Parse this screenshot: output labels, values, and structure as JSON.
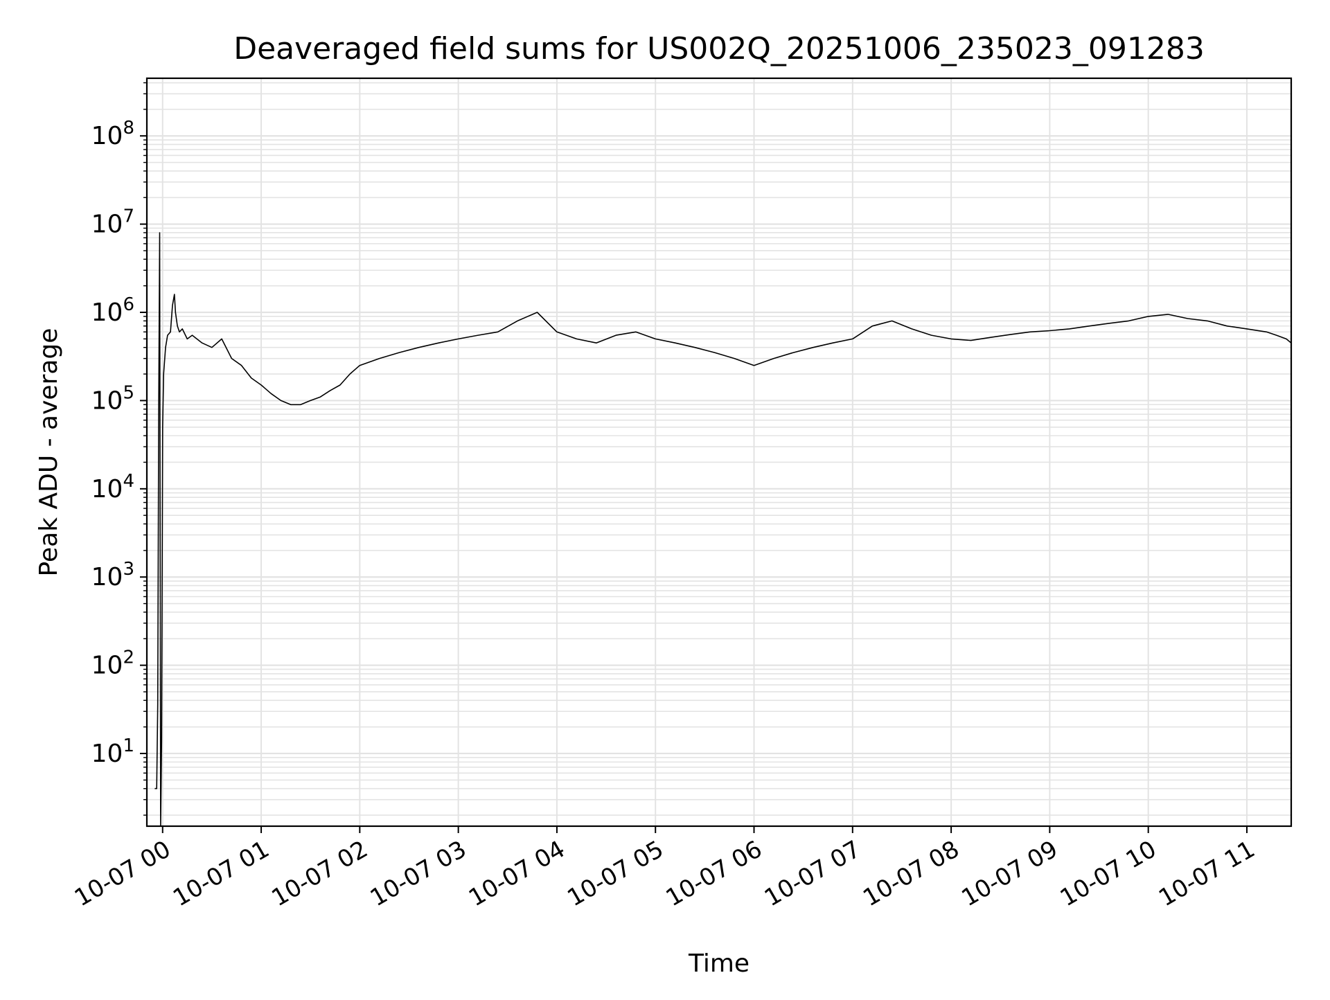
{
  "chart_data": {
    "type": "line",
    "title": "Deaveraged field sums for US002Q_20251006_235023_091283",
    "xlabel": "Time",
    "ylabel": "Peak ADU - average",
    "x_tick_labels": [
      "10-07 00",
      "10-07 01",
      "10-07 02",
      "10-07 03",
      "10-07 04",
      "10-07 05",
      "10-07 06",
      "10-07 07",
      "10-07 08",
      "10-07 09",
      "10-07 10",
      "10-07 11"
    ],
    "x_tick_hours": [
      0,
      1,
      2,
      3,
      4,
      5,
      6,
      7,
      8,
      9,
      10,
      11
    ],
    "xlim_hours": [
      -0.16,
      11.45
    ],
    "y_scale": "log",
    "ylim": [
      1.5,
      450000000.0
    ],
    "y_tick_exponents": [
      1,
      2,
      3,
      4,
      5,
      6,
      7,
      8
    ],
    "y_tick_base": "10",
    "grid": true,
    "line_color": "#000000",
    "series": [
      {
        "x_hours": [
          -0.08,
          -0.07,
          -0.06,
          -0.05,
          -0.04,
          -0.03,
          -0.02,
          -0.01,
          0.0,
          0.01,
          0.03,
          0.05,
          0.08,
          0.1,
          0.12,
          0.13,
          0.15,
          0.17,
          0.2,
          0.25,
          0.3,
          0.4,
          0.5,
          0.6,
          0.7,
          0.8,
          0.9,
          1.0,
          1.1,
          1.2,
          1.3,
          1.4,
          1.5,
          1.6,
          1.7,
          1.8,
          1.9,
          2.0,
          2.2,
          2.4,
          2.6,
          2.8,
          3.0,
          3.2,
          3.4,
          3.6,
          3.8,
          4.0,
          4.2,
          4.4,
          4.6,
          4.8,
          5.0,
          5.2,
          5.4,
          5.6,
          5.8,
          6.0,
          6.2,
          6.4,
          6.6,
          6.8,
          7.0,
          7.2,
          7.4,
          7.6,
          7.8,
          8.0,
          8.2,
          8.4,
          8.6,
          8.8,
          9.0,
          9.2,
          9.4,
          9.6,
          9.8,
          10.0,
          10.2,
          10.4,
          10.6,
          10.8,
          11.0,
          11.2,
          11.3,
          11.4,
          11.45
        ],
        "y": [
          4,
          4,
          4,
          36,
          80000,
          8000000,
          1.5,
          14,
          50000,
          200000,
          400000,
          550000,
          600000,
          1200000,
          1600000,
          1000000,
          700000,
          600000,
          650000,
          500000,
          550000,
          450000,
          400000,
          500000,
          300000,
          250000,
          180000,
          150000,
          120000,
          100000,
          90000,
          90000,
          100000,
          110000,
          130000,
          150000,
          200000,
          250000,
          300000,
          350000,
          400000,
          450000,
          500000,
          550000,
          600000,
          800000,
          1000000,
          600000,
          500000,
          450000,
          550000,
          600000,
          500000,
          450000,
          400000,
          350000,
          300000,
          250000,
          300000,
          350000,
          400000,
          450000,
          500000,
          700000,
          800000,
          650000,
          550000,
          500000,
          480000,
          520000,
          560000,
          600000,
          620000,
          650000,
          700000,
          750000,
          800000,
          900000,
          950000,
          850000,
          800000,
          700000,
          650000,
          600000,
          550000,
          500000,
          450000
        ]
      }
    ]
  }
}
